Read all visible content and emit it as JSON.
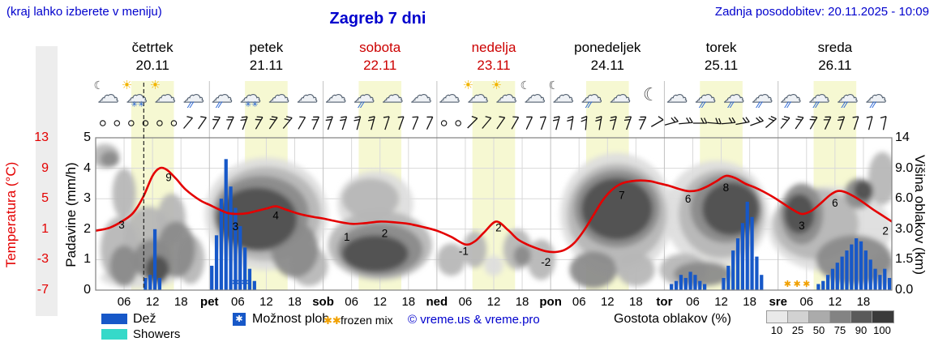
{
  "header": {
    "hint": "(kraj lahko izberete v meniju)",
    "title": "Zagreb 7 dni",
    "updated": "Zadnja posodobitev: 20.11.2025 - 10:09"
  },
  "axes": {
    "temp_label": "Temperatura (°C)",
    "temp_ticks": [
      "13",
      "9",
      "5",
      "1",
      "-3",
      "-7"
    ],
    "precip_label": "Padavine (mm/h)",
    "precip_ticks": [
      "5",
      "4",
      "3",
      "2",
      "1",
      "0"
    ],
    "cloud_label": "Višina oblakov (km)",
    "cloud_ticks": [
      "14",
      "9.0",
      "6.0",
      "3.0",
      "1.5",
      "0.0"
    ]
  },
  "days": [
    {
      "name": "četrtek",
      "date": "20.11",
      "color": "black"
    },
    {
      "name": "petek",
      "date": "21.11",
      "color": "black"
    },
    {
      "name": "sobota",
      "date": "22.11",
      "color": "red"
    },
    {
      "name": "nedelja",
      "date": "23.11",
      "color": "red"
    },
    {
      "name": "ponedeljek",
      "date": "24.11",
      "color": "black"
    },
    {
      "name": "torek",
      "date": "25.11",
      "color": "black"
    },
    {
      "name": "sreda",
      "date": "26.11",
      "color": "black"
    }
  ],
  "legend": {
    "rain": "Dež",
    "showers": "Showers",
    "chance": "Možnost ploh",
    "frozen": "frozen mix",
    "copyright": "© vreme.us & vreme.pro",
    "cloud_density": "Gostota oblakov (%)",
    "density_ticks": [
      "10",
      "25",
      "50",
      "75",
      "90",
      "100"
    ],
    "density_colors": [
      "#e9e9e9",
      "#d2d2d2",
      "#ababab",
      "#838383",
      "#5a5a5a",
      "#3a3a3a"
    ]
  },
  "colors": {
    "accent_blue": "#0000cd",
    "temp_red": "#e40000",
    "rain_blue": "#1758c8",
    "showers_cyan": "#35d9c9",
    "day_red": "#cc0000",
    "band_yellow": "#f6f8d2",
    "frozen_orange": "#f0a000",
    "cloud_shades": [
      "#dedede",
      "#b6b6b6",
      "#8a8a8a",
      "#4f4f4f"
    ]
  },
  "icon_glyphs": {
    "cloud": "☁",
    "sun": "☀",
    "moon": "☾",
    "drops": "∕∕",
    "snow": "✳✳",
    "star": "✱"
  },
  "chart_data": {
    "type": "meteogram",
    "x_hours_range": [
      0,
      168
    ],
    "temp_axis_range": [
      -7,
      13
    ],
    "precip_axis_range": [
      0,
      5
    ],
    "cloud_height_levels_km": [
      0,
      1.5,
      3.0,
      6.0,
      9.0,
      14
    ],
    "now_hour": 10.15,
    "x_ticks": [
      [
        6,
        "06"
      ],
      [
        12,
        "12"
      ],
      [
        18,
        "18"
      ],
      [
        24,
        "pet"
      ],
      [
        30,
        "06"
      ],
      [
        36,
        "12"
      ],
      [
        42,
        "18"
      ],
      [
        48,
        "sob"
      ],
      [
        54,
        "06"
      ],
      [
        60,
        "12"
      ],
      [
        66,
        "18"
      ],
      [
        72,
        "ned"
      ],
      [
        78,
        "06"
      ],
      [
        84,
        "12"
      ],
      [
        90,
        "18"
      ],
      [
        96,
        "pon"
      ],
      [
        102,
        "06"
      ],
      [
        108,
        "12"
      ],
      [
        114,
        "18"
      ],
      [
        120,
        "tor"
      ],
      [
        126,
        "06"
      ],
      [
        132,
        "12"
      ],
      [
        138,
        "18"
      ],
      [
        144,
        "sre"
      ],
      [
        150,
        "06"
      ],
      [
        156,
        "12"
      ],
      [
        162,
        "18"
      ]
    ],
    "temperature_c": [
      [
        0,
        0.8
      ],
      [
        3,
        1.2
      ],
      [
        6,
        2.2
      ],
      [
        8,
        3.2
      ],
      [
        10,
        5.2
      ],
      [
        12,
        8
      ],
      [
        13.5,
        9
      ],
      [
        15,
        8.8
      ],
      [
        17,
        7.6
      ],
      [
        19,
        6.2
      ],
      [
        22,
        4.8
      ],
      [
        24,
        4.2
      ],
      [
        26,
        3.6
      ],
      [
        28,
        3.1
      ],
      [
        30,
        3
      ],
      [
        32,
        3.1
      ],
      [
        34,
        3.4
      ],
      [
        36,
        3.7
      ],
      [
        38,
        4
      ],
      [
        40,
        3.6
      ],
      [
        43,
        3
      ],
      [
        46,
        2.6
      ],
      [
        48,
        2.4
      ],
      [
        51,
        2
      ],
      [
        54,
        1.7
      ],
      [
        57,
        1.8
      ],
      [
        60,
        2
      ],
      [
        63,
        1.9
      ],
      [
        66,
        1.7
      ],
      [
        69,
        1.3
      ],
      [
        72,
        0.8
      ],
      [
        75,
        0
      ],
      [
        78,
        -1
      ],
      [
        80,
        -0.6
      ],
      [
        82,
        0.6
      ],
      [
        84.5,
        2
      ],
      [
        87,
        0.9
      ],
      [
        89,
        -0.3
      ],
      [
        91,
        -1
      ],
      [
        93,
        -1.5
      ],
      [
        95,
        -1.9
      ],
      [
        97,
        -2
      ],
      [
        99,
        -1.7
      ],
      [
        101,
        -0.8
      ],
      [
        103,
        0.8
      ],
      [
        105,
        2.8
      ],
      [
        107,
        4.8
      ],
      [
        109,
        6.2
      ],
      [
        111,
        7
      ],
      [
        113,
        7.3
      ],
      [
        115,
        7.4
      ],
      [
        117,
        7.3
      ],
      [
        119,
        7
      ],
      [
        121,
        6.7
      ],
      [
        123,
        6.3
      ],
      [
        125,
        6
      ],
      [
        127,
        6.1
      ],
      [
        129,
        6.6
      ],
      [
        131,
        7.3
      ],
      [
        133,
        8
      ],
      [
        135,
        7.7
      ],
      [
        137,
        7
      ],
      [
        139,
        6.5
      ],
      [
        141,
        5.9
      ],
      [
        143,
        5.2
      ],
      [
        145,
        4.4
      ],
      [
        147,
        3.6
      ],
      [
        149,
        3
      ],
      [
        151,
        3.4
      ],
      [
        153,
        4.4
      ],
      [
        155,
        5.5
      ],
      [
        156.5,
        6
      ],
      [
        158,
        5.9
      ],
      [
        160,
        5.3
      ],
      [
        162,
        4.5
      ],
      [
        164,
        3.6
      ],
      [
        166,
        2.8
      ],
      [
        168,
        2
      ]
    ],
    "temp_point_labels": [
      [
        6.5,
        3,
        -6,
        18
      ],
      [
        13,
        9,
        14,
        16
      ],
      [
        29.5,
        3,
        0,
        20
      ],
      [
        38,
        4,
        0,
        16
      ],
      [
        53,
        1,
        0,
        14
      ],
      [
        61,
        2,
        0,
        19
      ],
      [
        78,
        -1,
        -2,
        13
      ],
      [
        85,
        2,
        0,
        12
      ],
      [
        95,
        -2,
        0,
        17
      ],
      [
        111,
        7,
        0,
        19
      ],
      [
        125,
        6,
        0,
        14
      ],
      [
        133,
        8,
        0,
        19
      ],
      [
        149,
        3,
        0,
        19
      ],
      [
        156,
        6,
        0,
        19
      ],
      [
        167,
        2,
        -2,
        16
      ]
    ],
    "precip_mm_per_h": [
      [
        10,
        0.4
      ],
      [
        11,
        0.5
      ],
      [
        12,
        2.0
      ],
      [
        13,
        0.4
      ],
      [
        24,
        0.8
      ],
      [
        25,
        1.8
      ],
      [
        26,
        3.0
      ],
      [
        27,
        4.3
      ],
      [
        28,
        3.4
      ],
      [
        29,
        2.7
      ],
      [
        30,
        2.1
      ],
      [
        31,
        1.4
      ],
      [
        32,
        0.7
      ],
      [
        33,
        0.3
      ],
      [
        121,
        0.2
      ],
      [
        122,
        0.3
      ],
      [
        123,
        0.5
      ],
      [
        124,
        0.4
      ],
      [
        125,
        0.6
      ],
      [
        126,
        0.5
      ],
      [
        127,
        0.3
      ],
      [
        128,
        0.2
      ],
      [
        132,
        0.4
      ],
      [
        133,
        0.8
      ],
      [
        134,
        1.3
      ],
      [
        135,
        1.7
      ],
      [
        136,
        2.2
      ],
      [
        137,
        2.9
      ],
      [
        138,
        2.4
      ],
      [
        139,
        1.1
      ],
      [
        140,
        0.5
      ],
      [
        152,
        0.2
      ],
      [
        153,
        0.3
      ],
      [
        154,
        0.5
      ],
      [
        155,
        0.7
      ],
      [
        156,
        0.9
      ],
      [
        157,
        1.1
      ],
      [
        158,
        1.3
      ],
      [
        159,
        1.5
      ],
      [
        160,
        1.7
      ],
      [
        161,
        1.6
      ],
      [
        162,
        1.3
      ],
      [
        163,
        1.0
      ],
      [
        164,
        0.7
      ],
      [
        165,
        0.5
      ],
      [
        166,
        0.7
      ],
      [
        167,
        0.4
      ]
    ],
    "frozen_mix_hours_blue": [
      29.5,
      31.5
    ],
    "frozen_mix_hours_orange": [
      146,
      148,
      150
    ],
    "cloud_blobs": [
      [
        2,
        11,
        3,
        2,
        2
      ],
      [
        3,
        10.5,
        2,
        1.3,
        3
      ],
      [
        6,
        6.5,
        2.5,
        2.5,
        2
      ],
      [
        5,
        2,
        4,
        1.8,
        2
      ],
      [
        6,
        1.2,
        3,
        1,
        3
      ],
      [
        11,
        2.5,
        5,
        2,
        2
      ],
      [
        12,
        1.5,
        4,
        1,
        3
      ],
      [
        13,
        1,
        2.5,
        0.7,
        4
      ],
      [
        16,
        4,
        3,
        2,
        2
      ],
      [
        17,
        2,
        4,
        1.5,
        3
      ],
      [
        20,
        1.5,
        3,
        1.2,
        2
      ],
      [
        9,
        0.6,
        8,
        0.5,
        1
      ],
      [
        36,
        4.5,
        13,
        4.2,
        1
      ],
      [
        36,
        4.5,
        11.5,
        3.6,
        2
      ],
      [
        35,
        4.5,
        10,
        3,
        3
      ],
      [
        34,
        4,
        8.5,
        2.4,
        4
      ],
      [
        42,
        2,
        5,
        1.5,
        3
      ],
      [
        45,
        1.2,
        4,
        1,
        2
      ],
      [
        59,
        5.5,
        8,
        3,
        1
      ],
      [
        58,
        6,
        6,
        2,
        2
      ],
      [
        60,
        2.2,
        11,
        2,
        2
      ],
      [
        60,
        2,
        9,
        1.4,
        3
      ],
      [
        59,
        1.8,
        7,
        0.9,
        4
      ],
      [
        75,
        1.5,
        3,
        0.8,
        2
      ],
      [
        80,
        2,
        2.5,
        0.9,
        2
      ],
      [
        84,
        1.2,
        2,
        0.5,
        1
      ],
      [
        89,
        2,
        3,
        1,
        2
      ],
      [
        90,
        1.7,
        1.8,
        0.5,
        3
      ],
      [
        94,
        1.5,
        3,
        1,
        2
      ],
      [
        110,
        4.5,
        12,
        4.5,
        1
      ],
      [
        110,
        4.5,
        10.5,
        3.8,
        2
      ],
      [
        110,
        5,
        9,
        3.2,
        3
      ],
      [
        110,
        5,
        7.5,
        2.7,
        4
      ],
      [
        105,
        1,
        5,
        0.9,
        3
      ],
      [
        114,
        1,
        4,
        0.8,
        2
      ],
      [
        131,
        4.5,
        11,
        4,
        1
      ],
      [
        132,
        4.5,
        9,
        3.4,
        2
      ],
      [
        133,
        5,
        7.5,
        2.9,
        3
      ],
      [
        134,
        5,
        6,
        2.4,
        4
      ],
      [
        124,
        1,
        5,
        0.8,
        2
      ],
      [
        128,
        0.8,
        6,
        0.6,
        3
      ],
      [
        155,
        3,
        13,
        2.8,
        1
      ],
      [
        152,
        3.5,
        9,
        2.5,
        2
      ],
      [
        149,
        4.5,
        4.5,
        2.5,
        3
      ],
      [
        148.5,
        4.5,
        3.2,
        1.8,
        4
      ],
      [
        160,
        1.5,
        8,
        1.2,
        3
      ],
      [
        161,
        6.5,
        3,
        1.5,
        3
      ],
      [
        162,
        6.8,
        2,
        1,
        4
      ],
      [
        166,
        8,
        3,
        3,
        2
      ],
      [
        166,
        1,
        3,
        0.8,
        2
      ]
    ],
    "weather_icons": [
      "moon-cloud",
      "sun-cloud-snow",
      "sun-cloud",
      "rain",
      "rain",
      "snow",
      "cloud",
      "cloud",
      "cloud",
      "rain",
      "cloud",
      "cloud",
      "cloud",
      "sun-cloud",
      "sun-cloud",
      "moon-cloud",
      "moon-cloud",
      "rain",
      "cloud",
      "moon",
      "cloud",
      "rain",
      "rain",
      "rain",
      "rain",
      "rain",
      "rain",
      "rain"
    ],
    "wind_barbs": [
      [
        "c"
      ],
      [
        "c"
      ],
      [
        "c"
      ],
      [
        "c"
      ],
      [
        "c"
      ],
      [
        "c"
      ],
      [
        -50,
        1
      ],
      [
        -55,
        1
      ],
      [
        -60,
        2
      ],
      [
        -65,
        2
      ],
      [
        -70,
        2
      ],
      [
        -60,
        2
      ],
      [
        -55,
        2
      ],
      [
        -50,
        2
      ],
      [
        -60,
        1
      ],
      [
        -65,
        2
      ],
      [
        -70,
        2
      ],
      [
        -72,
        2
      ],
      [
        -75,
        2
      ],
      [
        -75,
        2
      ],
      [
        -72,
        1
      ],
      [
        -70,
        1
      ],
      [
        -68,
        1
      ],
      [
        -65,
        1
      ],
      [
        "c"
      ],
      [
        "c"
      ],
      [
        -45,
        1
      ],
      [
        -50,
        1
      ],
      [
        -55,
        1
      ],
      [
        -60,
        1
      ],
      [
        -65,
        1
      ],
      [
        -70,
        1
      ],
      [
        -75,
        2
      ],
      [
        -80,
        2
      ],
      [
        -85,
        2
      ],
      [
        -80,
        2
      ],
      [
        -75,
        2
      ],
      [
        -70,
        2
      ],
      [
        -65,
        2
      ],
      [
        -30,
        1
      ],
      [
        -15,
        2
      ],
      [
        -5,
        2
      ],
      [
        0,
        2
      ],
      [
        5,
        2
      ],
      [
        -5,
        2
      ],
      [
        -10,
        2
      ],
      [
        -20,
        2
      ],
      [
        -40,
        2
      ],
      [
        -50,
        2
      ],
      [
        -55,
        2
      ],
      [
        -60,
        2
      ],
      [
        -65,
        2
      ],
      [
        -70,
        2
      ],
      [
        -72,
        1
      ],
      [
        -75,
        1
      ],
      [
        -78,
        1
      ]
    ]
  }
}
